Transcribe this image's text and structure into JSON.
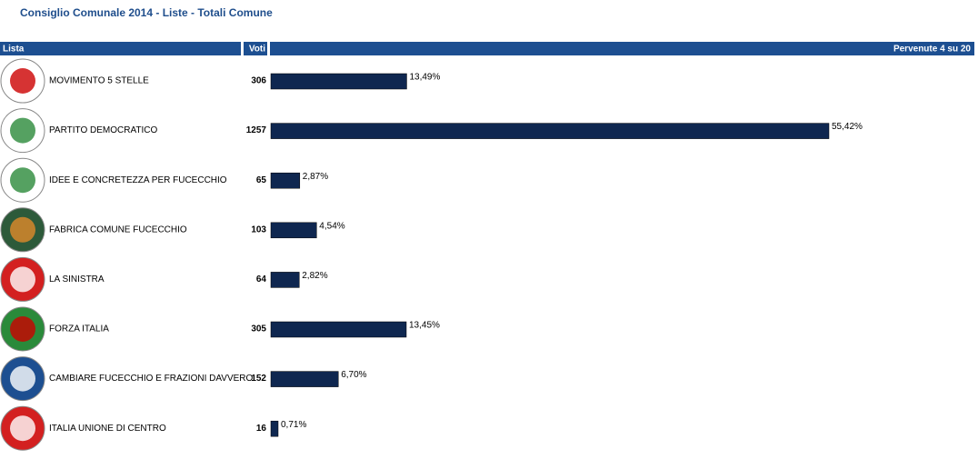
{
  "chart_data": {
    "type": "bar",
    "title": "Consiglio Comunale 2014 - Liste - Totali Comune",
    "headers": {
      "list": "Lista",
      "votes": "Voti",
      "status": "Pervenute 4 su 20"
    },
    "categories": [
      "MOVIMENTO 5 STELLE",
      "PARTITO DEMOCRATICO",
      "IDEE E CONCRETEZZA PER FUCECCHIO",
      "FABRICA COMUNE FUCECCHIO",
      "LA SINISTRA",
      "FORZA ITALIA",
      "CAMBIARE FUCECCHIO E FRAZIONI DAVVERO",
      "ITALIA UNIONE DI CENTRO"
    ],
    "votes": [
      306,
      1257,
      65,
      103,
      64,
      305,
      152,
      16
    ],
    "values": [
      13.49,
      55.42,
      2.87,
      4.54,
      2.82,
      13.45,
      6.7,
      0.71
    ],
    "value_labels": [
      "13,49%",
      "55,42%",
      "2,87%",
      "4,54%",
      "2,82%",
      "13,45%",
      "6,70%",
      "0,71%"
    ],
    "color": "#0f2750"
  }
}
